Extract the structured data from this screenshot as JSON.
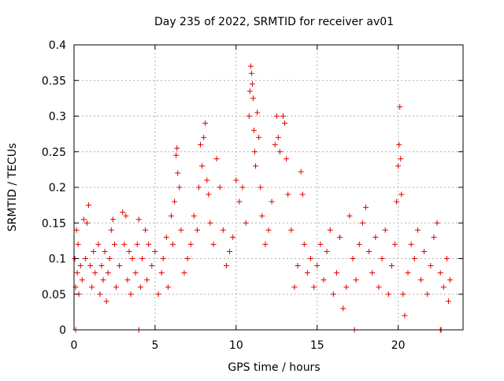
{
  "chart_data": {
    "type": "scatter",
    "title": "Day 235 of 2022, SRMTID for receiver av01",
    "xlabel": "GPS time / hours",
    "ylabel": "SRMTID / TECUs",
    "xlim": [
      0,
      24
    ],
    "ylim": [
      0,
      0.4
    ],
    "x_ticks": [
      0,
      5,
      10,
      15,
      20
    ],
    "y_ticks": [
      0,
      0.05,
      0.1,
      0.15,
      0.2,
      0.25,
      0.3,
      0.35,
      0.4
    ],
    "x_tick_labels": [
      "0",
      "5",
      "10",
      "15",
      "20"
    ],
    "y_tick_labels": [
      "0",
      "0.05",
      "0.1",
      "0.15",
      "0.2",
      "0.25",
      "0.3",
      "0.35",
      "0.4"
    ],
    "grid": true,
    "marker": "plus",
    "marker_color": "#e00000",
    "series": [
      {
        "name": "av01",
        "points": [
          [
            0.05,
            0.1
          ],
          [
            0.1,
            0.06
          ],
          [
            0.15,
            0.14
          ],
          [
            0.2,
            0.08
          ],
          [
            0.25,
            0.12
          ],
          [
            0.3,
            0.05
          ],
          [
            0.4,
            0.09
          ],
          [
            0.5,
            0.07
          ],
          [
            0.6,
            0.155
          ],
          [
            0.7,
            0.1
          ],
          [
            0.8,
            0.15
          ],
          [
            0.9,
            0.175
          ],
          [
            1.0,
            0.09
          ],
          [
            1.1,
            0.06
          ],
          [
            1.2,
            0.11
          ],
          [
            1.3,
            0.08
          ],
          [
            1.5,
            0.12
          ],
          [
            1.6,
            0.05
          ],
          [
            1.7,
            0.09
          ],
          [
            1.8,
            0.07
          ],
          [
            1.9,
            0.11
          ],
          [
            2.0,
            0.04
          ],
          [
            2.1,
            0.08
          ],
          [
            2.2,
            0.1
          ],
          [
            2.3,
            0.14
          ],
          [
            2.4,
            0.155
          ],
          [
            2.5,
            0.12
          ],
          [
            2.6,
            0.06
          ],
          [
            2.8,
            0.09
          ],
          [
            3.0,
            0.165
          ],
          [
            3.1,
            0.12
          ],
          [
            3.2,
            0.16
          ],
          [
            3.3,
            0.07
          ],
          [
            3.4,
            0.11
          ],
          [
            3.5,
            0.05
          ],
          [
            3.6,
            0.1
          ],
          [
            3.8,
            0.08
          ],
          [
            3.9,
            0.12
          ],
          [
            4.0,
            0.155
          ],
          [
            4.1,
            0.06
          ],
          [
            4.2,
            0.1
          ],
          [
            4.4,
            0.14
          ],
          [
            4.5,
            0.07
          ],
          [
            4.6,
            0.12
          ],
          [
            4.8,
            0.09
          ],
          [
            5.0,
            0.11
          ],
          [
            5.2,
            0.05
          ],
          [
            5.4,
            0.08
          ],
          [
            5.5,
            0.1
          ],
          [
            5.7,
            0.13
          ],
          [
            5.8,
            0.06
          ],
          [
            6.0,
            0.16
          ],
          [
            6.1,
            0.12
          ],
          [
            6.2,
            0.18
          ],
          [
            6.3,
            0.245
          ],
          [
            6.35,
            0.255
          ],
          [
            6.4,
            0.22
          ],
          [
            6.5,
            0.2
          ],
          [
            6.6,
            0.14
          ],
          [
            6.8,
            0.08
          ],
          [
            7.0,
            0.1
          ],
          [
            7.2,
            0.12
          ],
          [
            7.4,
            0.16
          ],
          [
            7.6,
            0.14
          ],
          [
            7.7,
            0.2
          ],
          [
            7.8,
            0.26
          ],
          [
            7.9,
            0.23
          ],
          [
            8.0,
            0.27
          ],
          [
            8.1,
            0.29
          ],
          [
            8.2,
            0.21
          ],
          [
            8.3,
            0.19
          ],
          [
            8.4,
            0.15
          ],
          [
            8.6,
            0.12
          ],
          [
            8.8,
            0.24
          ],
          [
            9.0,
            0.2
          ],
          [
            9.2,
            0.14
          ],
          [
            9.4,
            0.09
          ],
          [
            9.6,
            0.11
          ],
          [
            9.8,
            0.13
          ],
          [
            10.0,
            0.21
          ],
          [
            10.2,
            0.18
          ],
          [
            10.4,
            0.2
          ],
          [
            10.6,
            0.15
          ],
          [
            10.8,
            0.3
          ],
          [
            10.85,
            0.335
          ],
          [
            10.9,
            0.37
          ],
          [
            10.95,
            0.36
          ],
          [
            11.0,
            0.345
          ],
          [
            11.05,
            0.325
          ],
          [
            11.1,
            0.28
          ],
          [
            11.15,
            0.25
          ],
          [
            11.2,
            0.23
          ],
          [
            11.3,
            0.305
          ],
          [
            11.4,
            0.27
          ],
          [
            11.5,
            0.2
          ],
          [
            11.6,
            0.16
          ],
          [
            11.8,
            0.12
          ],
          [
            12.0,
            0.14
          ],
          [
            12.2,
            0.18
          ],
          [
            12.4,
            0.26
          ],
          [
            12.5,
            0.3
          ],
          [
            12.6,
            0.27
          ],
          [
            12.7,
            0.25
          ],
          [
            12.9,
            0.3
          ],
          [
            13.0,
            0.29
          ],
          [
            13.1,
            0.24
          ],
          [
            13.2,
            0.19
          ],
          [
            13.4,
            0.14
          ],
          [
            13.6,
            0.06
          ],
          [
            13.8,
            0.09
          ],
          [
            14.0,
            0.222
          ],
          [
            14.1,
            0.19
          ],
          [
            14.2,
            0.12
          ],
          [
            14.4,
            0.08
          ],
          [
            14.6,
            0.1
          ],
          [
            14.8,
            0.06
          ],
          [
            15.0,
            0.09
          ],
          [
            15.2,
            0.12
          ],
          [
            15.4,
            0.07
          ],
          [
            15.6,
            0.11
          ],
          [
            15.8,
            0.14
          ],
          [
            16.0,
            0.05
          ],
          [
            16.2,
            0.08
          ],
          [
            16.4,
            0.13
          ],
          [
            16.6,
            0.03
          ],
          [
            16.8,
            0.06
          ],
          [
            17.0,
            0.16
          ],
          [
            17.2,
            0.1
          ],
          [
            17.4,
            0.07
          ],
          [
            17.6,
            0.12
          ],
          [
            17.8,
            0.15
          ],
          [
            18.0,
            0.172
          ],
          [
            18.2,
            0.11
          ],
          [
            18.4,
            0.08
          ],
          [
            18.6,
            0.13
          ],
          [
            18.8,
            0.06
          ],
          [
            19.0,
            0.1
          ],
          [
            19.2,
            0.14
          ],
          [
            19.4,
            0.05
          ],
          [
            19.6,
            0.09
          ],
          [
            19.8,
            0.12
          ],
          [
            19.9,
            0.18
          ],
          [
            20.0,
            0.23
          ],
          [
            20.05,
            0.26
          ],
          [
            20.1,
            0.313
          ],
          [
            20.15,
            0.24
          ],
          [
            20.2,
            0.19
          ],
          [
            20.3,
            0.05
          ],
          [
            20.4,
            0.02
          ],
          [
            20.6,
            0.08
          ],
          [
            20.8,
            0.12
          ],
          [
            21.0,
            0.1
          ],
          [
            21.2,
            0.14
          ],
          [
            21.4,
            0.07
          ],
          [
            21.6,
            0.11
          ],
          [
            21.8,
            0.05
          ],
          [
            22.0,
            0.09
          ],
          [
            22.2,
            0.13
          ],
          [
            22.4,
            0.15
          ],
          [
            22.6,
            0.08
          ],
          [
            22.8,
            0.06
          ],
          [
            23.0,
            0.1
          ],
          [
            23.1,
            0.04
          ],
          [
            23.2,
            0.07
          ],
          [
            0.1,
            0
          ],
          [
            4.0,
            0
          ],
          [
            17.3,
            0
          ],
          [
            22.6,
            0
          ],
          [
            22.65,
            0
          ]
        ]
      }
    ]
  }
}
